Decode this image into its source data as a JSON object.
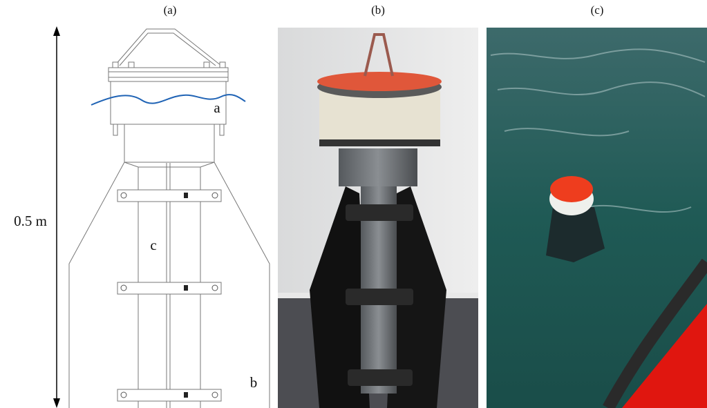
{
  "panels": [
    {
      "label": "(a)",
      "scale_label": "0.5 m",
      "callouts": [
        "a",
        "b",
        "c"
      ]
    },
    {
      "label": "(b)"
    },
    {
      "label": "(c)"
    }
  ]
}
